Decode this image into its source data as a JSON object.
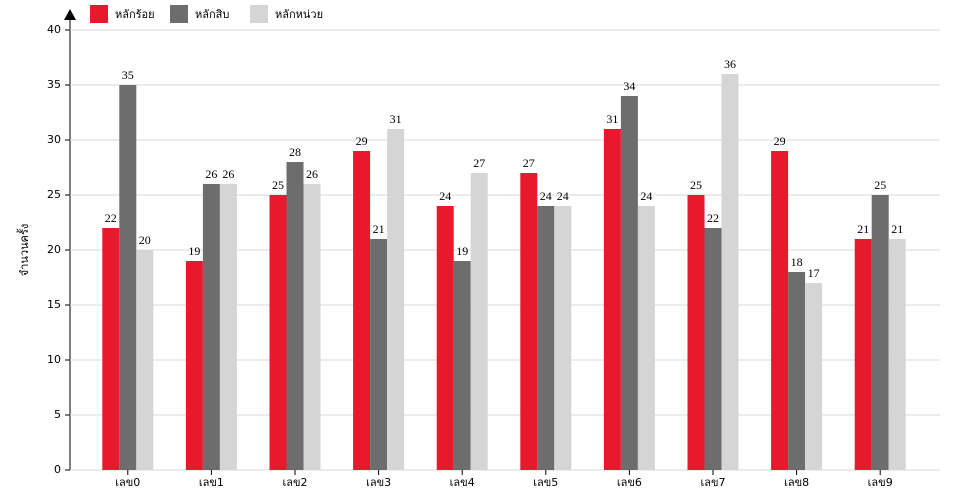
{
  "chart_data": {
    "type": "bar",
    "y_label": "จำนวนครั้ง",
    "categories": [
      "เลข0",
      "เลข1",
      "เลข2",
      "เลข3",
      "เลข4",
      "เลข5",
      "เลข6",
      "เลข7",
      "เลข8",
      "เลข9"
    ],
    "series": [
      {
        "name": "หลักร้อย",
        "color": "#e8192c",
        "values": [
          22,
          19,
          25,
          29,
          24,
          27,
          31,
          25,
          29,
          21
        ]
      },
      {
        "name": "หลักสิบ",
        "color": "#6d6d6d",
        "values": [
          35,
          26,
          28,
          21,
          19,
          24,
          34,
          22,
          18,
          25
        ]
      },
      {
        "name": "หลักหน่วย",
        "color": "#d5d5d5",
        "values": [
          20,
          26,
          26,
          31,
          27,
          24,
          24,
          36,
          17,
          21
        ]
      }
    ],
    "ylim": [
      0,
      40
    ],
    "yticks": [
      0,
      5,
      10,
      15,
      20,
      25,
      30,
      35,
      40
    ],
    "grid": true,
    "legend": "top-left"
  }
}
